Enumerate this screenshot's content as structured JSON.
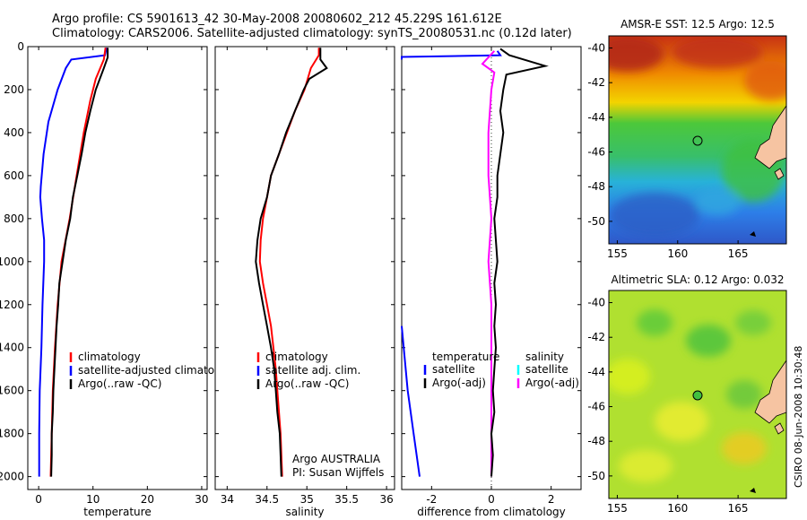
{
  "header": {
    "line1": "Argo profile: CS 5901613_42 30-May-2008 20080602_212 45.229S 161.612E",
    "line2": "Climatology: CARS2006. Satellite-adjusted climatology: synTS_20080531.nc (0.12d later)"
  },
  "credit": "CSIRO 08-Jun-2008 10:30:48",
  "chart_data": [
    {
      "type": "line",
      "id": "temperature",
      "xlabel": "temperature",
      "ylabel": "",
      "xlim": [
        -2,
        31
      ],
      "ylim": [
        2060,
        0
      ],
      "xticks": [
        "0",
        "10",
        "20",
        "30"
      ],
      "xtick_values": [
        0,
        10,
        20,
        30
      ],
      "yticks": [
        "0",
        "200",
        "400",
        "600",
        "800",
        "1000",
        "1200",
        "1400",
        "1600",
        "1800",
        "2000"
      ],
      "ytick_values": [
        0,
        200,
        400,
        600,
        800,
        1000,
        1200,
        1400,
        1600,
        1800,
        2000
      ],
      "legend": [
        {
          "name": "climatology",
          "color": "#ff0000"
        },
        {
          "name": "satellite-adjusted climatolog",
          "color": "#0000ff"
        },
        {
          "name": "Argo(..raw -QC)",
          "color": "#000000"
        }
      ],
      "series": [
        {
          "name": "satellite-adjusted climatolog",
          "color": "#0000ff",
          "points": [
            [
              12.5,
              5
            ],
            [
              12.2,
              40
            ],
            [
              6.0,
              60
            ],
            [
              5.0,
              100
            ],
            [
              3.5,
              200
            ],
            [
              1.8,
              350
            ],
            [
              0.9,
              500
            ],
            [
              0.4,
              650
            ],
            [
              0.3,
              700
            ],
            [
              0.6,
              800
            ],
            [
              1.0,
              900
            ],
            [
              1.0,
              1000
            ],
            [
              0.7,
              1200
            ],
            [
              0.5,
              1400
            ],
            [
              0.2,
              1600
            ],
            [
              0.1,
              1800
            ],
            [
              0.1,
              2000
            ]
          ]
        },
        {
          "name": "climatology",
          "color": "#ff0000",
          "points": [
            [
              12.3,
              5
            ],
            [
              12.0,
              60
            ],
            [
              10.5,
              150
            ],
            [
              9.5,
              250
            ],
            [
              8.3,
              400
            ],
            [
              7.0,
              600
            ],
            [
              5.7,
              800
            ],
            [
              4.2,
              1000
            ],
            [
              3.5,
              1200
            ],
            [
              3.0,
              1400
            ],
            [
              2.6,
              1600
            ],
            [
              2.4,
              1800
            ],
            [
              2.2,
              2000
            ]
          ]
        },
        {
          "name": "Argo(..raw -QC)",
          "color": "#000000",
          "points": [
            [
              12.7,
              5
            ],
            [
              12.7,
              50
            ],
            [
              12.0,
              100
            ],
            [
              10.5,
              200
            ],
            [
              9.5,
              300
            ],
            [
              8.6,
              400
            ],
            [
              7.9,
              500
            ],
            [
              7.1,
              600
            ],
            [
              6.3,
              700
            ],
            [
              5.8,
              800
            ],
            [
              5.0,
              900
            ],
            [
              4.4,
              1000
            ],
            [
              3.8,
              1100
            ],
            [
              3.6,
              1200
            ],
            [
              3.3,
              1300
            ],
            [
              3.1,
              1400
            ],
            [
              2.9,
              1500
            ],
            [
              2.7,
              1600
            ],
            [
              2.6,
              1700
            ],
            [
              2.4,
              1800
            ],
            [
              2.4,
              1900
            ],
            [
              2.3,
              2000
            ]
          ]
        }
      ]
    },
    {
      "type": "line",
      "id": "salinity",
      "xlabel": "salinity",
      "ylabel": "",
      "xlim": [
        33.85,
        36.1
      ],
      "ylim": [
        2060,
        0
      ],
      "xticks": [
        "34",
        "34.5",
        "35",
        "35.5",
        "36"
      ],
      "xtick_values": [
        34,
        34.5,
        35,
        35.5,
        36
      ],
      "yticks": [],
      "legend": [
        {
          "name": "climatology",
          "color": "#ff0000"
        },
        {
          "name": "satellite adj. clim.",
          "color": "#0000ff"
        },
        {
          "name": "Argo(..raw -QC)",
          "color": "#000000"
        }
      ],
      "annotations": [
        "Argo AUSTRALIA",
        "PI: Susan Wijffels"
      ],
      "series": [
        {
          "name": "climatology",
          "color": "#ff0000",
          "points": [
            [
              35.15,
              5
            ],
            [
              35.15,
              40
            ],
            [
              35.05,
              100
            ],
            [
              34.97,
              200
            ],
            [
              34.85,
              300
            ],
            [
              34.75,
              400
            ],
            [
              34.65,
              500
            ],
            [
              34.55,
              600
            ],
            [
              34.5,
              700
            ],
            [
              34.45,
              800
            ],
            [
              34.42,
              900
            ],
            [
              34.41,
              1000
            ],
            [
              34.45,
              1100
            ],
            [
              34.5,
              1200
            ],
            [
              34.55,
              1300
            ],
            [
              34.58,
              1400
            ],
            [
              34.61,
              1500
            ],
            [
              34.63,
              1600
            ],
            [
              34.65,
              1700
            ],
            [
              34.67,
              1800
            ],
            [
              34.68,
              1900
            ],
            [
              34.69,
              2000
            ]
          ]
        },
        {
          "name": "Argo(..raw -QC)",
          "color": "#000000",
          "points": [
            [
              35.17,
              5
            ],
            [
              35.17,
              60
            ],
            [
              35.25,
              100
            ],
            [
              35.03,
              150
            ],
            [
              34.96,
              200
            ],
            [
              34.85,
              300
            ],
            [
              34.74,
              400
            ],
            [
              34.65,
              500
            ],
            [
              34.55,
              600
            ],
            [
              34.5,
              700
            ],
            [
              34.42,
              800
            ],
            [
              34.38,
              900
            ],
            [
              34.36,
              1000
            ],
            [
              34.4,
              1100
            ],
            [
              34.45,
              1200
            ],
            [
              34.5,
              1300
            ],
            [
              34.55,
              1400
            ],
            [
              34.59,
              1500
            ],
            [
              34.61,
              1600
            ],
            [
              34.63,
              1700
            ],
            [
              34.66,
              1800
            ],
            [
              34.67,
              1900
            ],
            [
              34.68,
              2000
            ]
          ]
        }
      ]
    },
    {
      "type": "line",
      "id": "difference",
      "xlabel": "difference from climatology",
      "ylabel": "",
      "xlim": [
        -3.0,
        3.0
      ],
      "ylim": [
        2060,
        0
      ],
      "xticks": [
        "-2",
        "0",
        "2"
      ],
      "xtick_values": [
        -2,
        0,
        2
      ],
      "yticks": [],
      "legend_left_title": "temperature",
      "legend_right_title": "salinity",
      "legend": [
        {
          "name": "satellite",
          "color": "#0000ff",
          "column": "left"
        },
        {
          "name": "Argo(-adj)",
          "color": "#000000",
          "column": "left"
        },
        {
          "name": "satellite",
          "color": "#00ffff",
          "column": "right"
        },
        {
          "name": "Argo(-adj)",
          "color": "#ff00ff",
          "column": "right"
        }
      ],
      "series": [
        {
          "name": "temperature satellite",
          "color": "#0000ff",
          "points": [
            [
              0.2,
              20
            ],
            [
              0.3,
              40
            ],
            [
              -3.0,
              48
            ],
            [
              -3.0,
              60
            ]
          ]
        },
        {
          "name": "temperature satellite (deep)",
          "color": "#0000ff",
          "points": [
            [
              -3.0,
              1300
            ],
            [
              -2.8,
              1600
            ],
            [
              -2.6,
              1800
            ],
            [
              -2.4,
              2000
            ]
          ]
        },
        {
          "name": "salinity Argo(-adj)",
          "color": "#ff00ff",
          "points": [
            [
              0.1,
              20
            ],
            [
              -0.3,
              80
            ],
            [
              0.1,
              120
            ],
            [
              0.0,
              200
            ],
            [
              -0.1,
              400
            ],
            [
              -0.1,
              600
            ],
            [
              0.0,
              800
            ],
            [
              -0.1,
              1000
            ],
            [
              0.0,
              1200
            ],
            [
              0.0,
              1400
            ],
            [
              0.0,
              1600
            ],
            [
              0.0,
              1800
            ],
            [
              0.0,
              2000
            ]
          ]
        },
        {
          "name": "temperature Argo(-adj)",
          "color": "#000000",
          "points": [
            [
              0.3,
              10
            ],
            [
              0.6,
              40
            ],
            [
              1.8,
              90
            ],
            [
              0.5,
              130
            ],
            [
              0.4,
              200
            ],
            [
              0.3,
              300
            ],
            [
              0.4,
              400
            ],
            [
              0.3,
              500
            ],
            [
              0.2,
              600
            ],
            [
              0.2,
              700
            ],
            [
              0.1,
              800
            ],
            [
              0.15,
              900
            ],
            [
              0.2,
              1000
            ],
            [
              0.1,
              1100
            ],
            [
              0.15,
              1200
            ],
            [
              0.1,
              1300
            ],
            [
              0.15,
              1400
            ],
            [
              0.1,
              1500
            ],
            [
              0.05,
              1600
            ],
            [
              0.1,
              1700
            ],
            [
              0.0,
              1800
            ],
            [
              0.05,
              1900
            ],
            [
              0.0,
              2000
            ]
          ]
        }
      ]
    },
    {
      "type": "heatmap",
      "id": "sst-map",
      "title": "AMSR-E SST: 12.5 Argo: 12.5",
      "xlim": [
        154.3,
        169.0
      ],
      "ylim": [
        -51.3,
        -39.3
      ],
      "xticks": [
        "155",
        "160",
        "165"
      ],
      "xtick_values": [
        155,
        160,
        165
      ],
      "yticks": [
        "-40",
        "-42",
        "-44",
        "-46",
        "-48",
        "-50"
      ],
      "ytick_values": [
        -40,
        -42,
        -44,
        -46,
        -48,
        -50
      ],
      "float_marker": [
        161.6,
        -45.2
      ]
    },
    {
      "type": "heatmap",
      "id": "sla-map",
      "title": "Altimetric SLA: 0.12 Argo: 0.032",
      "xlim": [
        154.3,
        169.0
      ],
      "ylim": [
        -51.3,
        -39.3
      ],
      "xticks": [
        "155",
        "160",
        "165"
      ],
      "xtick_values": [
        155,
        160,
        165
      ],
      "yticks": [
        "-40",
        "-42",
        "-44",
        "-46",
        "-48",
        "-50"
      ],
      "ytick_values": [
        -40,
        -42,
        -44,
        -46,
        -48,
        -50
      ],
      "float_marker": [
        161.6,
        -45.3
      ]
    }
  ]
}
